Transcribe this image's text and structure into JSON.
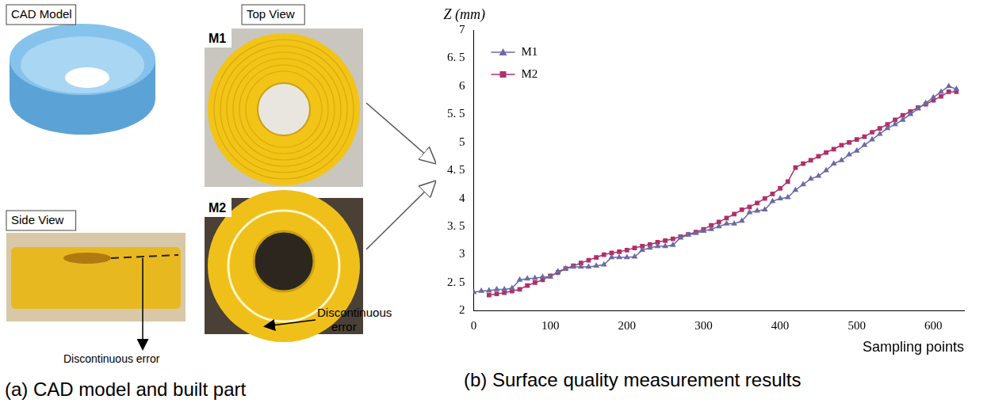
{
  "chart_data": {
    "type": "line",
    "title": "(b) Surface quality measurement results",
    "y_label": "Z (mm)",
    "x_label": "Sampling points",
    "x": [
      0,
      10,
      20,
      30,
      40,
      50,
      60,
      70,
      80,
      90,
      100,
      110,
      120,
      130,
      140,
      150,
      160,
      170,
      180,
      190,
      200,
      210,
      220,
      230,
      240,
      250,
      260,
      270,
      280,
      290,
      300,
      310,
      320,
      330,
      340,
      350,
      360,
      370,
      380,
      390,
      400,
      410,
      420,
      430,
      440,
      450,
      460,
      470,
      480,
      490,
      500,
      510,
      520,
      530,
      540,
      550,
      560,
      570,
      580,
      590,
      600,
      610,
      620,
      630
    ],
    "series": [
      {
        "name": "M1",
        "color": "#6a6aa6",
        "marker": "triangle",
        "values": [
          2.33,
          2.35,
          2.36,
          2.38,
          2.38,
          2.4,
          2.55,
          2.57,
          2.58,
          2.6,
          2.6,
          2.7,
          2.75,
          2.78,
          2.78,
          2.78,
          2.8,
          2.82,
          2.95,
          2.95,
          2.95,
          2.96,
          3.08,
          3.12,
          3.15,
          3.15,
          3.17,
          3.3,
          3.35,
          3.38,
          3.42,
          3.45,
          3.5,
          3.55,
          3.55,
          3.6,
          3.75,
          3.78,
          3.8,
          3.95,
          4.0,
          4.02,
          4.15,
          4.25,
          4.35,
          4.4,
          4.5,
          4.62,
          4.68,
          4.78,
          4.85,
          4.95,
          5.05,
          5.15,
          5.25,
          5.32,
          5.4,
          5.5,
          5.6,
          5.7,
          5.8,
          5.9,
          6.0,
          5.95
        ]
      },
      {
        "name": "M2",
        "color": "#b0306a",
        "marker": "square",
        "values": [
          null,
          null,
          2.28,
          2.3,
          2.32,
          2.35,
          2.38,
          2.45,
          2.5,
          2.55,
          2.62,
          2.68,
          2.75,
          2.8,
          2.85,
          2.9,
          2.95,
          3.0,
          3.03,
          3.05,
          3.08,
          3.12,
          3.15,
          3.18,
          3.22,
          3.25,
          3.28,
          3.32,
          3.36,
          3.4,
          3.45,
          3.52,
          3.58,
          3.65,
          3.72,
          3.8,
          3.85,
          3.92,
          4.0,
          4.08,
          4.18,
          4.3,
          4.55,
          4.62,
          4.68,
          4.75,
          4.82,
          4.88,
          4.95,
          5.0,
          5.05,
          5.1,
          5.18,
          5.25,
          5.32,
          5.4,
          5.48,
          5.55,
          5.62,
          5.68,
          5.75,
          5.82,
          5.9,
          5.9
        ]
      }
    ],
    "xlim": [
      0,
      640
    ],
    "xticks": [
      0,
      100,
      200,
      300,
      400,
      500,
      600
    ],
    "ylim": [
      2,
      7
    ],
    "yticks": [
      2,
      {
        "value": 2.5,
        "label": "2. 5"
      },
      3,
      {
        "value": 3.5,
        "label": "3. 5"
      },
      4,
      {
        "value": 4.5,
        "label": "4. 5"
      },
      5,
      {
        "value": 5.5,
        "label": "5. 5"
      },
      6,
      {
        "value": 6.5,
        "label": "6. 5"
      },
      7
    ],
    "legend": "top-left",
    "grid": false
  },
  "panel_a": {
    "caption": "(a) CAD model and built part",
    "cad_model": "CAD Model",
    "top_view": "Top View",
    "side_view": "Side View",
    "m1": "M1",
    "m2": "M2",
    "side_error": "Discontinuous error",
    "top_error": "Discontinuous error"
  }
}
